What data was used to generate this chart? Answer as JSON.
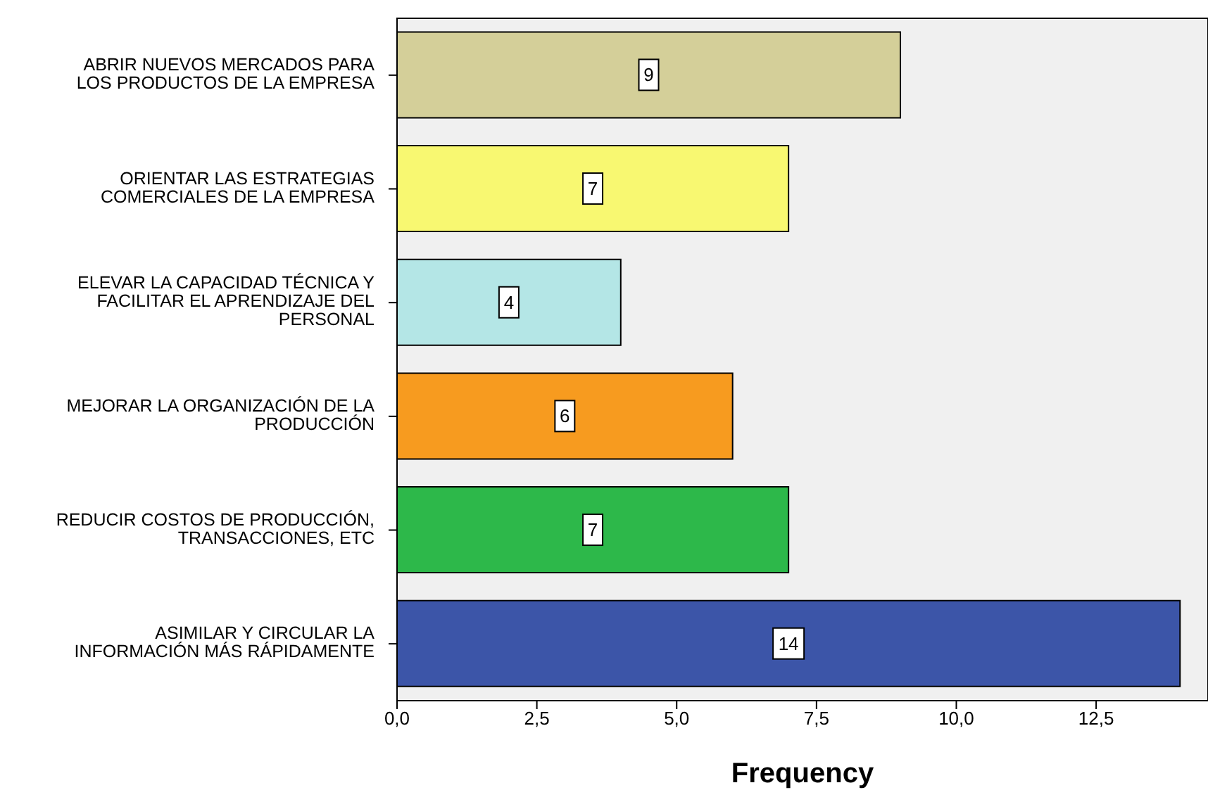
{
  "chart_data": {
    "type": "bar",
    "orientation": "horizontal",
    "xlabel": "Frequency",
    "categories": [
      "ABRIR NUEVOS MERCADOS PARA\nLOS PRODUCTOS DE LA EMPRESA",
      "ORIENTAR LAS ESTRATEGIAS\nCOMERCIALES DE LA EMPRESA",
      "ELEVAR LA CAPACIDAD TÉCNICA Y\nFACILITAR EL APRENDIZAJE DEL\nPERSONAL",
      "MEJORAR LA ORGANIZACIÓN DE LA\nPRODUCCIÓN",
      "REDUCIR COSTOS DE PRODUCCIÓN,\nTRANSACCIONES, ETC",
      "ASIMILAR Y CIRCULAR LA\nINFORMACIÓN MÁS RÁPIDAMENTE"
    ],
    "values": [
      9,
      7,
      4,
      6,
      7,
      14
    ],
    "colors": [
      "#d4cf99",
      "#f8f871",
      "#b4e6e6",
      "#f79b1f",
      "#2db84a",
      "#3c55a8"
    ],
    "xlim": [
      0,
      14.5
    ],
    "xticks": [
      {
        "value": 0,
        "label": "0,0"
      },
      {
        "value": 2.5,
        "label": "2,5"
      },
      {
        "value": 5,
        "label": "5,0"
      },
      {
        "value": 7.5,
        "label": "7,5"
      },
      {
        "value": 10,
        "label": "10,0"
      },
      {
        "value": 12.5,
        "label": "12,5"
      }
    ],
    "data_labels": true
  }
}
